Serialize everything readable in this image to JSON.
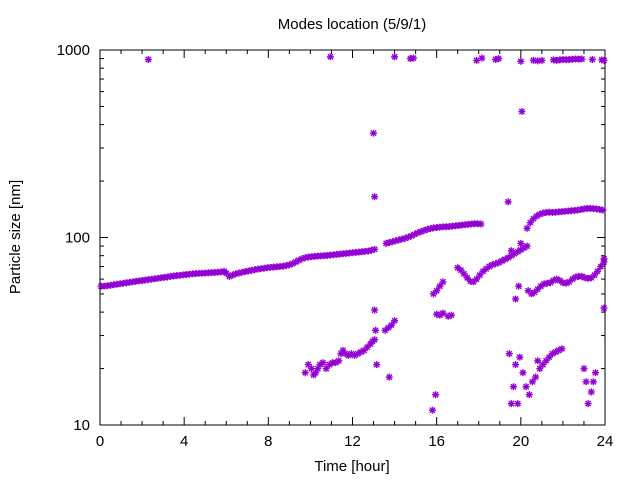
{
  "chart_data": {
    "type": "scatter",
    "title": "Modes location (5/9/1)",
    "xlabel": "Time [hour]",
    "ylabel": "Particle size [nm]",
    "xlim": [
      0,
      24
    ],
    "ylim": [
      10,
      1000
    ],
    "yscale": "log",
    "xticks": [
      0,
      4,
      8,
      12,
      16,
      20,
      24
    ],
    "xtick_labels": [
      "0",
      "4",
      "8",
      "12",
      "16",
      "20",
      "24"
    ],
    "yticks": [
      10,
      100,
      1000
    ],
    "ytick_labels": [
      "10",
      "100",
      "1000"
    ],
    "grid": false,
    "legend": false,
    "marker_color": "#9400d3",
    "series": [
      {
        "points": [
          [
            0.05,
            55
          ],
          [
            0.2,
            55
          ],
          [
            0.35,
            55.3
          ],
          [
            0.5,
            55.6
          ],
          [
            0.65,
            56
          ],
          [
            0.8,
            56.3
          ],
          [
            0.95,
            56.6
          ],
          [
            1.1,
            57
          ],
          [
            1.25,
            57.3
          ],
          [
            1.4,
            57.7
          ],
          [
            1.55,
            58
          ],
          [
            1.7,
            58.3
          ],
          [
            1.85,
            58.7
          ],
          [
            2.0,
            59
          ],
          [
            2.15,
            59.3
          ],
          [
            2.3,
            59.6
          ],
          [
            2.45,
            59.9
          ],
          [
            2.6,
            60.2
          ],
          [
            2.75,
            60.6
          ],
          [
            2.9,
            61
          ],
          [
            3.05,
            61.3
          ],
          [
            3.2,
            61.6
          ],
          [
            3.35,
            62
          ],
          [
            3.5,
            62.3
          ],
          [
            3.65,
            62.6
          ],
          [
            3.8,
            62.9
          ],
          [
            3.95,
            63.2
          ],
          [
            4.1,
            63.5
          ],
          [
            4.25,
            63.7
          ],
          [
            4.4,
            64
          ],
          [
            4.55,
            64.2
          ],
          [
            4.7,
            64.4
          ],
          [
            4.85,
            64.5
          ],
          [
            5.0,
            64.6
          ],
          [
            5.15,
            64.8
          ],
          [
            5.3,
            65
          ],
          [
            5.45,
            65.1
          ],
          [
            5.6,
            65.3
          ],
          [
            5.75,
            65.5
          ],
          [
            5.9,
            66
          ],
          [
            6.0,
            64.5
          ],
          [
            6.15,
            62
          ],
          [
            6.3,
            63
          ],
          [
            6.45,
            64
          ],
          [
            6.6,
            64.6
          ],
          [
            6.75,
            65.2
          ],
          [
            6.9,
            65.8
          ],
          [
            7.05,
            66.3
          ],
          [
            7.2,
            66.8
          ],
          [
            7.35,
            67.3
          ],
          [
            7.5,
            67.8
          ],
          [
            7.65,
            68.2
          ],
          [
            7.8,
            68.6
          ],
          [
            7.95,
            69
          ],
          [
            8.1,
            69.3
          ],
          [
            8.25,
            69.5
          ],
          [
            8.4,
            69.8
          ],
          [
            8.55,
            70
          ],
          [
            8.7,
            70.3
          ],
          [
            8.85,
            70.8
          ],
          [
            9.0,
            71.5
          ],
          [
            9.15,
            72.5
          ],
          [
            9.3,
            74
          ],
          [
            9.45,
            75.5
          ],
          [
            9.6,
            77
          ],
          [
            9.75,
            78
          ],
          [
            9.9,
            78.6
          ],
          [
            10.05,
            79
          ],
          [
            10.2,
            79.3
          ],
          [
            10.35,
            79.6
          ],
          [
            10.5,
            79.8
          ],
          [
            10.65,
            80
          ],
          [
            10.8,
            80.3
          ],
          [
            10.95,
            80.6
          ],
          [
            11.1,
            81
          ],
          [
            11.25,
            81.3
          ],
          [
            11.4,
            81.6
          ],
          [
            11.55,
            82
          ],
          [
            11.7,
            82.3
          ],
          [
            11.85,
            82.6
          ],
          [
            12.0,
            83
          ],
          [
            12.15,
            83.3
          ],
          [
            12.3,
            83.6
          ],
          [
            12.45,
            84
          ],
          [
            12.6,
            84.3
          ],
          [
            12.75,
            84.7
          ],
          [
            12.9,
            85.5
          ],
          [
            13.05,
            86.5
          ],
          [
            13.6,
            93
          ],
          [
            13.75,
            94
          ],
          [
            13.9,
            95
          ],
          [
            14.05,
            96
          ],
          [
            14.2,
            97
          ],
          [
            14.35,
            98
          ],
          [
            14.5,
            99
          ],
          [
            14.65,
            100.5
          ],
          [
            14.8,
            102
          ],
          [
            14.95,
            104
          ],
          [
            15.1,
            106
          ],
          [
            15.25,
            107.5
          ],
          [
            15.4,
            109
          ],
          [
            15.55,
            110.5
          ],
          [
            15.7,
            111.5
          ],
          [
            15.85,
            112.5
          ],
          [
            16.0,
            113
          ],
          [
            16.15,
            113.5
          ],
          [
            16.3,
            114
          ],
          [
            16.45,
            114
          ],
          [
            16.6,
            114.5
          ],
          [
            16.75,
            115
          ],
          [
            16.9,
            115.5
          ],
          [
            17.05,
            116
          ],
          [
            17.2,
            116.5
          ],
          [
            17.35,
            117
          ],
          [
            17.5,
            117.5
          ],
          [
            17.65,
            118
          ],
          [
            17.8,
            118.5
          ],
          [
            17.95,
            118.5
          ],
          [
            18.1,
            118
          ],
          [
            17.0,
            69
          ],
          [
            17.15,
            67
          ],
          [
            17.3,
            64
          ],
          [
            17.45,
            61
          ],
          [
            17.6,
            58.5
          ],
          [
            17.75,
            58
          ],
          [
            17.9,
            60
          ],
          [
            18.05,
            63
          ],
          [
            18.2,
            66
          ],
          [
            18.35,
            68
          ],
          [
            18.5,
            70
          ],
          [
            18.65,
            71.5
          ],
          [
            18.8,
            72.5
          ],
          [
            18.95,
            73.5
          ],
          [
            19.1,
            75
          ],
          [
            19.25,
            76.5
          ],
          [
            19.4,
            78
          ],
          [
            19.55,
            80
          ],
          [
            19.7,
            82
          ],
          [
            19.85,
            84
          ],
          [
            20.0,
            86
          ],
          [
            20.15,
            88
          ],
          [
            20.3,
            90
          ],
          [
            20.3,
            112
          ],
          [
            20.45,
            120
          ],
          [
            20.6,
            126
          ],
          [
            20.75,
            130
          ],
          [
            20.9,
            133
          ],
          [
            21.05,
            135
          ],
          [
            21.2,
            136
          ],
          [
            21.35,
            136.5
          ],
          [
            21.5,
            136
          ],
          [
            21.65,
            136.5
          ],
          [
            21.8,
            137
          ],
          [
            21.95,
            137.5
          ],
          [
            22.1,
            138
          ],
          [
            22.25,
            138.5
          ],
          [
            22.4,
            139
          ],
          [
            22.55,
            139.5
          ],
          [
            22.7,
            140
          ],
          [
            22.85,
            141
          ],
          [
            23.0,
            142
          ],
          [
            23.15,
            143
          ],
          [
            23.3,
            143
          ],
          [
            23.45,
            142.5
          ],
          [
            23.6,
            142
          ],
          [
            23.75,
            141
          ],
          [
            23.9,
            140
          ],
          [
            20.35,
            52
          ],
          [
            20.5,
            50
          ],
          [
            20.65,
            51
          ],
          [
            20.8,
            53
          ],
          [
            20.95,
            55
          ],
          [
            21.1,
            56.5
          ],
          [
            21.25,
            57
          ],
          [
            21.4,
            57.5
          ],
          [
            21.55,
            59
          ],
          [
            21.7,
            60
          ],
          [
            21.85,
            59
          ],
          [
            22.0,
            57.5
          ],
          [
            22.15,
            57
          ],
          [
            22.3,
            58
          ],
          [
            22.45,
            60
          ],
          [
            22.6,
            61.5
          ],
          [
            22.75,
            62
          ],
          [
            22.9,
            62
          ],
          [
            23.05,
            61
          ],
          [
            23.2,
            60.5
          ],
          [
            23.35,
            61
          ],
          [
            23.5,
            63
          ],
          [
            23.65,
            66
          ],
          [
            23.8,
            70
          ],
          [
            23.95,
            74
          ],
          [
            24.05,
            77
          ],
          [
            19.4,
            155
          ],
          [
            19.55,
            85
          ],
          [
            19.75,
            47
          ],
          [
            19.9,
            55
          ],
          [
            20.0,
            93
          ],
          [
            20.05,
            470
          ],
          [
            9.75,
            19
          ],
          [
            9.9,
            21
          ],
          [
            10.05,
            20
          ],
          [
            10.15,
            18.5
          ],
          [
            10.25,
            19
          ],
          [
            10.35,
            20
          ],
          [
            10.45,
            21
          ],
          [
            10.6,
            21.5
          ],
          [
            10.75,
            20
          ],
          [
            10.9,
            21
          ],
          [
            11.05,
            21.5
          ],
          [
            11.2,
            21.5
          ],
          [
            11.35,
            22
          ],
          [
            11.45,
            24
          ],
          [
            11.55,
            25
          ],
          [
            11.65,
            24
          ],
          [
            11.8,
            23.5
          ],
          [
            11.95,
            24
          ],
          [
            12.1,
            23.5
          ],
          [
            12.25,
            24
          ],
          [
            12.4,
            24.5
          ],
          [
            12.55,
            25
          ],
          [
            12.7,
            26
          ],
          [
            12.85,
            27
          ],
          [
            12.95,
            28
          ],
          [
            13.05,
            28.5
          ],
          [
            13.1,
            32
          ],
          [
            13.05,
            41
          ],
          [
            13.15,
            21
          ],
          [
            13.55,
            32
          ],
          [
            13.7,
            33
          ],
          [
            13.85,
            34
          ],
          [
            14.0,
            36
          ],
          [
            13.75,
            18
          ],
          [
            15.8,
            12
          ],
          [
            15.95,
            14.5
          ],
          [
            15.85,
            50
          ],
          [
            16.0,
            52
          ],
          [
            16.15,
            55
          ],
          [
            16.3,
            58
          ],
          [
            16.0,
            39
          ],
          [
            16.15,
            38.5
          ],
          [
            16.3,
            39.5
          ],
          [
            16.55,
            38
          ],
          [
            16.7,
            38.5
          ],
          [
            19.45,
            24
          ],
          [
            19.55,
            13
          ],
          [
            19.65,
            16
          ],
          [
            19.75,
            21
          ],
          [
            19.85,
            13
          ],
          [
            19.95,
            23
          ],
          [
            20.1,
            19
          ],
          [
            20.25,
            16
          ],
          [
            20.4,
            14.5
          ],
          [
            20.55,
            17
          ],
          [
            20.7,
            18
          ],
          [
            20.8,
            22
          ],
          [
            20.9,
            20
          ],
          [
            21.05,
            21
          ],
          [
            21.2,
            22
          ],
          [
            21.35,
            23
          ],
          [
            21.5,
            24
          ],
          [
            21.65,
            24.5
          ],
          [
            21.8,
            25
          ],
          [
            21.95,
            25.5
          ],
          [
            23.0,
            20
          ],
          [
            23.1,
            17
          ],
          [
            23.2,
            13
          ],
          [
            23.35,
            15
          ],
          [
            23.45,
            17
          ],
          [
            23.55,
            19
          ],
          [
            24.05,
            42
          ],
          [
            13.0,
            360
          ],
          [
            13.05,
            165
          ],
          [
            2.3,
            890
          ],
          [
            10.95,
            920
          ],
          [
            14.0,
            920
          ],
          [
            14.75,
            900
          ],
          [
            14.9,
            905
          ],
          [
            17.9,
            880
          ],
          [
            18.15,
            905
          ],
          [
            18.8,
            890
          ],
          [
            18.95,
            900
          ],
          [
            20.0,
            870
          ],
          [
            20.6,
            880
          ],
          [
            20.8,
            875
          ],
          [
            21.0,
            880
          ],
          [
            21.55,
            885
          ],
          [
            21.7,
            880
          ],
          [
            21.85,
            885
          ],
          [
            22.0,
            890
          ],
          [
            22.15,
            888
          ],
          [
            22.3,
            890
          ],
          [
            22.45,
            892
          ],
          [
            22.6,
            895
          ],
          [
            22.75,
            893
          ],
          [
            22.9,
            895
          ],
          [
            23.4,
            890
          ],
          [
            23.85,
            885
          ],
          [
            24.0,
            880
          ]
        ]
      }
    ]
  }
}
